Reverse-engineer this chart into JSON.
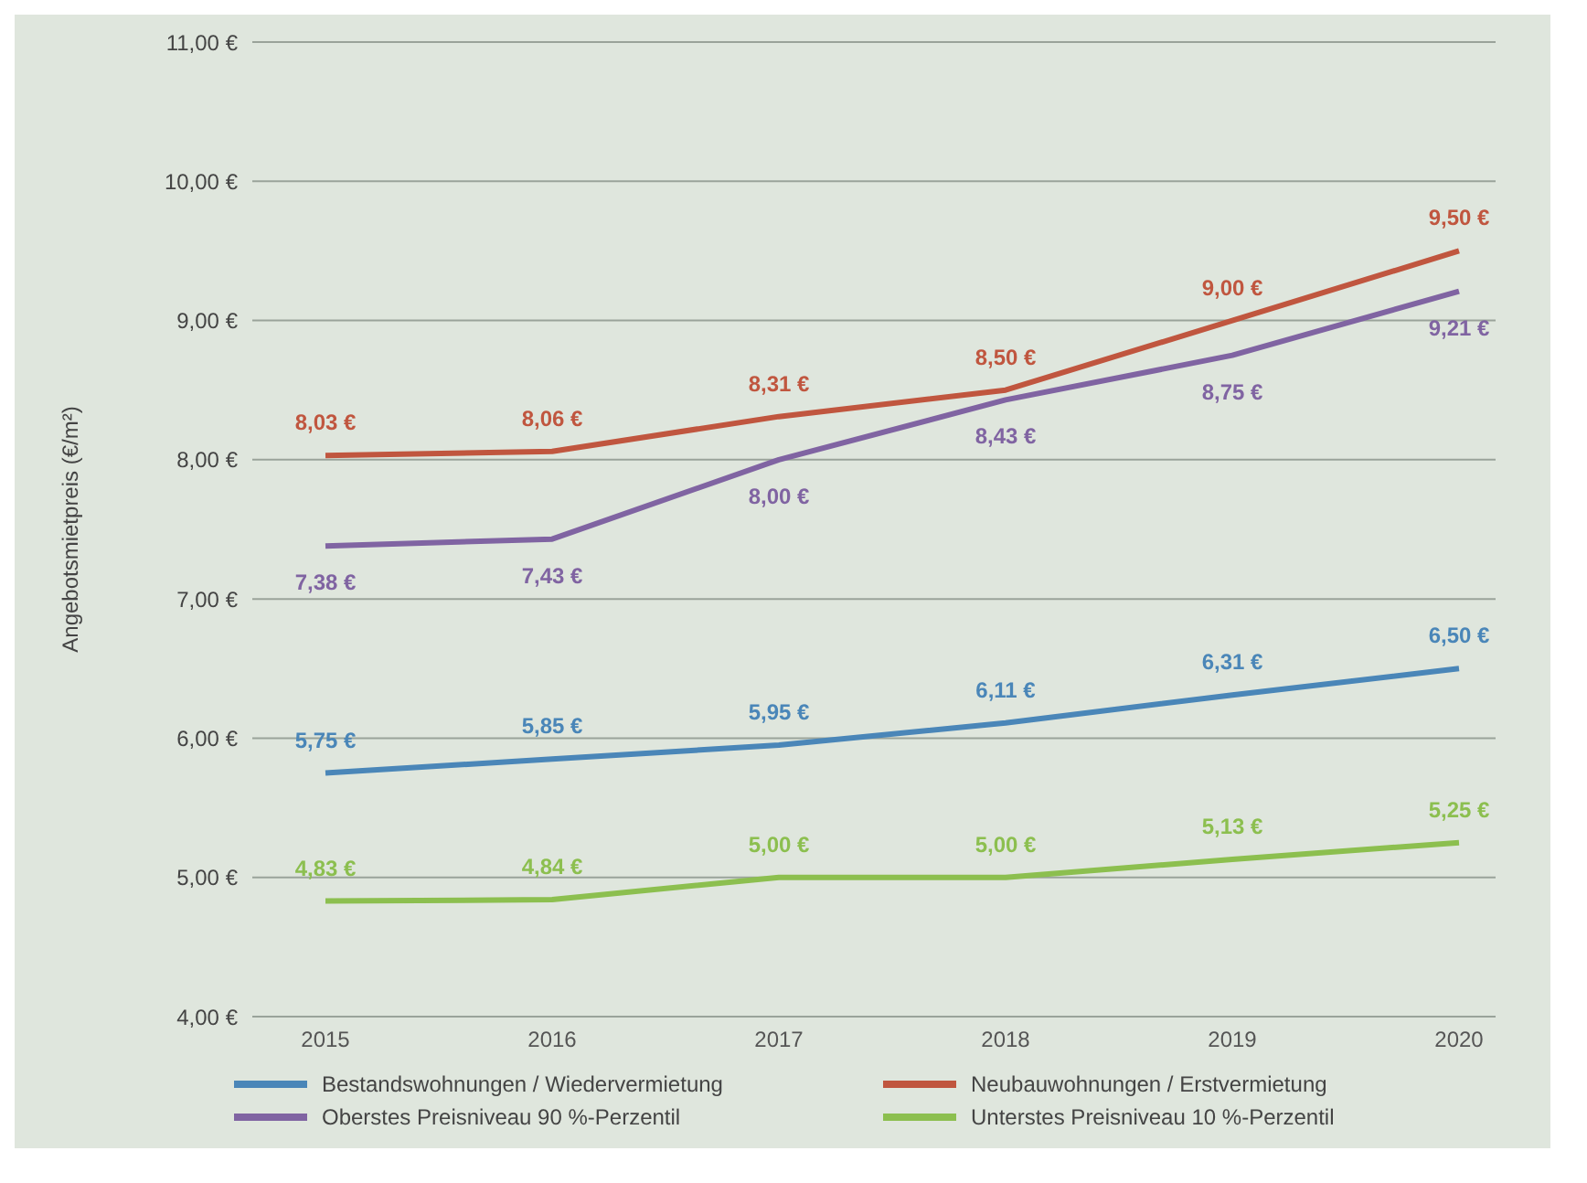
{
  "chart_data": {
    "type": "line",
    "ylabel": "Angebotsmietpreis (€/m²)",
    "categories": [
      "2015",
      "2016",
      "2017",
      "2018",
      "2019",
      "2020"
    ],
    "series": [
      {
        "name": "Bestandswohnungen / Wiedervermietung",
        "color": "#4a86b8",
        "values": [
          5.75,
          5.85,
          5.95,
          6.11,
          6.31,
          6.5
        ],
        "value_labels": [
          "5,75 €",
          "5,85 €",
          "5,95 €",
          "6,11 €",
          "6,31 €",
          "6,50 €"
        ]
      },
      {
        "name": "Neubauwohnungen / Erstvermietung",
        "color": "#c0563f",
        "values": [
          8.03,
          8.06,
          8.31,
          8.5,
          9.0,
          9.5
        ],
        "value_labels": [
          "8,03 €",
          "8,06 €",
          "8,31 €",
          "8,50 €",
          "9,00 €",
          "9,50 €"
        ]
      },
      {
        "name": "Unterstes Preisniveau 10 %-Perzentil",
        "color": "#8cbf4f",
        "values": [
          4.83,
          4.84,
          5.0,
          5.0,
          5.13,
          5.25
        ],
        "value_labels": [
          "4,83 €",
          "4,84 €",
          "5,00 €",
          "5,00 €",
          "5,13 €",
          "5,25 €"
        ]
      },
      {
        "name": "Oberstes Preisniveau 90 %-Perzentil",
        "color": "#8064a2",
        "values": [
          7.38,
          7.43,
          8.0,
          8.43,
          8.75,
          9.21
        ],
        "value_labels": [
          "7,38 €",
          "7,43 €",
          "8,00 €",
          "8,43 €",
          "8,75 €",
          "9,21 €"
        ]
      }
    ],
    "ylim": [
      4,
      11
    ],
    "yticks": [
      {
        "value": 4,
        "label": "4,00 €"
      },
      {
        "value": 5,
        "label": "5,00 €"
      },
      {
        "value": 6,
        "label": "6,00 €"
      },
      {
        "value": 7,
        "label": "7,00 €"
      },
      {
        "value": 8,
        "label": "8,00 €"
      },
      {
        "value": 9,
        "label": "9,00 €"
      },
      {
        "value": 10,
        "label": "10,00 €"
      },
      {
        "value": 11,
        "label": "11,00 €"
      }
    ],
    "grid": "y",
    "legend": "bottom",
    "marker": "none",
    "line_style": "solid"
  }
}
